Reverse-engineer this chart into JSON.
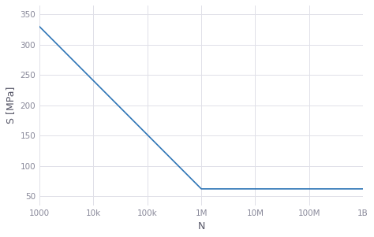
{
  "x_data": [
    1000,
    1000000,
    1000000000
  ],
  "y_data": [
    330,
    62,
    62
  ],
  "x_start": 1000,
  "x_end": 1000000000,
  "line_color": "#2e75b6",
  "line_width": 1.2,
  "xlabel": "N",
  "ylabel": "S [MPa]",
  "yticks": [
    50,
    100,
    150,
    200,
    250,
    300,
    350
  ],
  "xtick_values": [
    1000,
    10000,
    100000,
    1000000,
    10000000,
    100000000,
    1000000000
  ],
  "xtick_labels": [
    "1000",
    "10k",
    "100k",
    "1M",
    "10M",
    "100M",
    "1B"
  ],
  "grid_color": "#e0e0e8",
  "background_color": "#ffffff",
  "ylim": [
    35,
    365
  ],
  "tick_label_color": "#888899",
  "axis_label_color": "#555566",
  "spine_color": "#ccccdd"
}
